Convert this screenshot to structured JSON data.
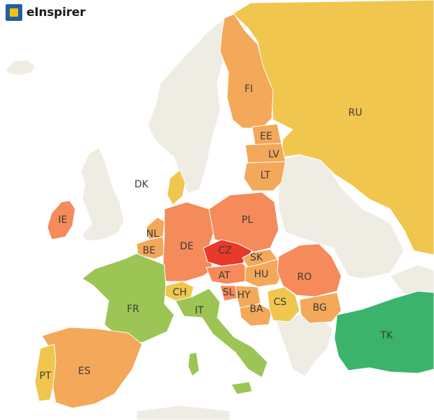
{
  "brand": {
    "name": "eInspirer",
    "logo": "eInspirer square logo"
  },
  "colors": {
    "background_land": "#efece4",
    "highest": "#e8392b",
    "high": "#f58a5b",
    "mid_high": "#f3a85a",
    "mid": "#f0c64e",
    "low": "#9cc555",
    "lowest": "#3bb36a"
  },
  "countries": [
    {
      "code": "RU",
      "tier": "mid"
    },
    {
      "code": "FI",
      "tier": "mid_high"
    },
    {
      "code": "EE",
      "tier": "mid_high"
    },
    {
      "code": "LV",
      "tier": "mid_high"
    },
    {
      "code": "LT",
      "tier": "mid_high"
    },
    {
      "code": "DK",
      "tier": "mid"
    },
    {
      "code": "IE",
      "tier": "high"
    },
    {
      "code": "NL",
      "tier": "mid_high"
    },
    {
      "code": "BE",
      "tier": "mid_high"
    },
    {
      "code": "DE",
      "tier": "high"
    },
    {
      "code": "PL",
      "tier": "high"
    },
    {
      "code": "CZ",
      "tier": "highest"
    },
    {
      "code": "SK",
      "tier": "mid_high"
    },
    {
      "code": "AT",
      "tier": "high"
    },
    {
      "code": "HU",
      "tier": "mid_high"
    },
    {
      "code": "RO",
      "tier": "high"
    },
    {
      "code": "CH",
      "tier": "mid"
    },
    {
      "code": "SL",
      "tier": "high"
    },
    {
      "code": "HY",
      "tier": "mid_high"
    },
    {
      "code": "BA",
      "tier": "mid_high"
    },
    {
      "code": "CS",
      "tier": "mid"
    },
    {
      "code": "BG",
      "tier": "mid_high"
    },
    {
      "code": "FR",
      "tier": "low"
    },
    {
      "code": "IT",
      "tier": "low"
    },
    {
      "code": "TK",
      "tier": "lowest"
    },
    {
      "code": "ES",
      "tier": "mid_high"
    },
    {
      "code": "PT",
      "tier": "mid"
    }
  ]
}
